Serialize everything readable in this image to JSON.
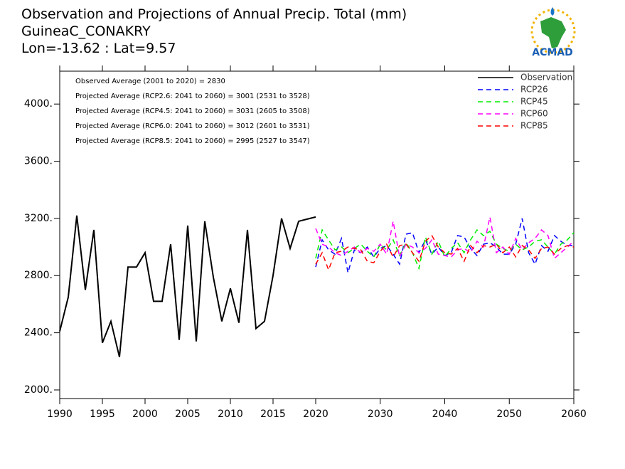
{
  "chart_data": {
    "type": "line",
    "title": "Observation and Projections of Annual Precip. Total (mm)",
    "subtitle": "GuineaC_CONAKRY",
    "location": "Lon=-13.62 : Lat=9.57",
    "logo": {
      "text": "ACMAD"
    },
    "annotations": [
      "Observed Average (2001 to 2020) = 2830",
      "Projected Average (RCP2.6: 2041 to 2060) = 3001 (2531 to 3528)",
      "Projected Average (RCP4.5: 2041 to 2060) = 3031 (2605 to 3508)",
      "Projected Average (RCP6.0: 2041 to 2060) = 3012 (2601 to 3531)",
      "Projected Average (RCP8.5: 2041 to 2060) = 2995 (2527 to 3547)"
    ],
    "xaxes": [
      {
        "xlim": [
          1990,
          2020
        ],
        "xticks": [
          1990,
          1995,
          2000,
          2005,
          2010,
          2015,
          2020
        ]
      },
      {
        "xlim": [
          2020,
          2060
        ],
        "xticks": [
          2030,
          2040,
          2050,
          2060
        ]
      }
    ],
    "ylim": [
      1940,
      4230
    ],
    "yticks": [
      {
        "value": 2000,
        "label": "2000."
      },
      {
        "value": 2400,
        "label": "2400."
      },
      {
        "value": 2800,
        "label": "2800."
      },
      {
        "value": 3200,
        "label": "3200."
      },
      {
        "value": 3600,
        "label": "3600."
      },
      {
        "value": 4000,
        "label": "4000."
      }
    ],
    "legend": "upper right",
    "series": [
      {
        "name": "Observation",
        "color": "#000000",
        "line_style": "solid",
        "x": [
          1990,
          1991,
          1992,
          1993,
          1994,
          1995,
          1996,
          1997,
          1998,
          1999,
          2000,
          2001,
          2002,
          2003,
          2004,
          2005,
          2006,
          2007,
          2008,
          2009,
          2010,
          2011,
          2012,
          2013,
          2014,
          2015,
          2016,
          2017,
          2018,
          2019,
          2020
        ],
        "values": [
          2410,
          2650,
          3220,
          2700,
          3120,
          2330,
          2480,
          2230,
          2860,
          2860,
          2960,
          2620,
          2620,
          3020,
          2350,
          3150,
          2340,
          3180,
          2790,
          2480,
          2710,
          2470,
          3120,
          2430,
          2480,
          2800,
          3200,
          2990,
          3180,
          3195,
          3210
        ]
      },
      {
        "name": "RCP26",
        "color": "#0000ff",
        "line_style": "dashed",
        "x": [
          2020,
          2021,
          2022,
          2023,
          2024,
          2025,
          2026,
          2027,
          2028,
          2029,
          2030,
          2031,
          2032,
          2033,
          2034,
          2035,
          2036,
          2037,
          2038,
          2039,
          2040,
          2041,
          2042,
          2043,
          2044,
          2045,
          2046,
          2047,
          2048,
          2049,
          2050,
          2051,
          2052,
          2053,
          2054,
          2055,
          2056,
          2057,
          2058,
          2059,
          2060
        ],
        "values": [
          2860,
          3050,
          2980,
          2950,
          3060,
          2820,
          2980,
          2960,
          3000,
          2930,
          2990,
          3010,
          2950,
          2880,
          3090,
          3100,
          2960,
          3050,
          2950,
          3000,
          2940,
          2960,
          3080,
          3070,
          2990,
          2940,
          3020,
          3030,
          3000,
          2950,
          2950,
          3020,
          3200,
          2960,
          2880,
          3010,
          2970,
          3080,
          3040,
          3010,
          3010
        ]
      },
      {
        "name": "RCP45",
        "color": "#00ee00",
        "line_style": "dashed",
        "x": [
          2020,
          2021,
          2022,
          2023,
          2024,
          2025,
          2026,
          2027,
          2028,
          2029,
          2030,
          2031,
          2032,
          2033,
          2034,
          2035,
          2036,
          2037,
          2038,
          2039,
          2040,
          2041,
          2042,
          2043,
          2044,
          2045,
          2046,
          2047,
          2048,
          2049,
          2050,
          2051,
          2052,
          2053,
          2054,
          2055,
          2056,
          2057,
          2058,
          2059,
          2060
        ],
        "values": [
          2920,
          3120,
          3050,
          2980,
          3000,
          2960,
          2990,
          3020,
          2970,
          2930,
          3020,
          2980,
          3050,
          2940,
          3030,
          2960,
          2850,
          3070,
          2950,
          3040,
          2930,
          2990,
          3030,
          2960,
          3050,
          3120,
          3080,
          3110,
          3020,
          2990,
          2970,
          3020,
          2980,
          3000,
          3040,
          3050,
          3000,
          2950,
          3020,
          3050,
          3100
        ]
      },
      {
        "name": "RCP60",
        "color": "#ff00ff",
        "line_style": "dashed",
        "x": [
          2020,
          2021,
          2022,
          2023,
          2024,
          2025,
          2026,
          2027,
          2028,
          2029,
          2030,
          2031,
          2032,
          2033,
          2034,
          2035,
          2036,
          2037,
          2038,
          2039,
          2040,
          2041,
          2042,
          2043,
          2044,
          2045,
          2046,
          2047,
          2048,
          2049,
          2050,
          2051,
          2052,
          2053,
          2054,
          2055,
          2056,
          2057,
          2058,
          2059,
          2060
        ],
        "values": [
          3130,
          3020,
          3000,
          2960,
          2940,
          2970,
          3000,
          2960,
          2990,
          2970,
          3020,
          2950,
          3180,
          2930,
          3020,
          3000,
          2960,
          2990,
          3050,
          2950,
          2940,
          2930,
          2980,
          2990,
          2960,
          3040,
          3000,
          3210,
          2960,
          3000,
          2950,
          3060,
          2980,
          3030,
          3060,
          3120,
          3080,
          2920,
          2960,
          3000,
          3040
        ]
      },
      {
        "name": "RCP85",
        "color": "#ff0000",
        "line_style": "dashed",
        "x": [
          2020,
          2021,
          2022,
          2023,
          2024,
          2025,
          2026,
          2027,
          2028,
          2029,
          2030,
          2031,
          2032,
          2033,
          2034,
          2035,
          2036,
          2037,
          2038,
          2039,
          2040,
          2041,
          2042,
          2043,
          2044,
          2045,
          2046,
          2047,
          2048,
          2049,
          2050,
          2051,
          2052,
          2053,
          2054,
          2055,
          2056,
          2057,
          2058,
          2059,
          2060
        ],
        "values": [
          2880,
          2960,
          2840,
          2960,
          2970,
          3000,
          2990,
          2980,
          2900,
          2890,
          2970,
          3020,
          2930,
          3010,
          3020,
          2960,
          2900,
          3040,
          3080,
          3000,
          2960,
          2950,
          2990,
          2900,
          3010,
          2960,
          3010,
          3000,
          3020,
          2960,
          3000,
          2930,
          3010,
          2980,
          2920,
          2990,
          3000,
          2950,
          2990,
          3010,
          3000
        ]
      }
    ]
  }
}
